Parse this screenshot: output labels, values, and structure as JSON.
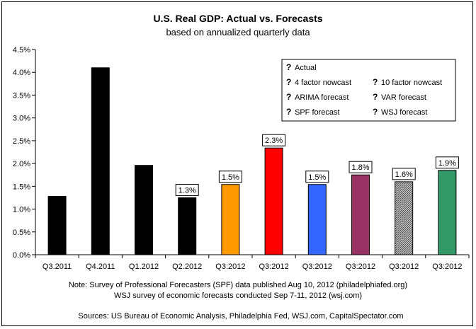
{
  "chart_data": {
    "type": "bar",
    "title": "U.S. Real GDP: Actual vs. Forecasts",
    "subtitle": "based on annualized quarterly data",
    "xlabel": "",
    "ylabel": "",
    "ylim": [
      0,
      4.5
    ],
    "yticks": [
      "0.0%",
      "0.5%",
      "1.0%",
      "1.5%",
      "2.0%",
      "2.5%",
      "3.0%",
      "3.5%",
      "4.0%",
      "4.5%"
    ],
    "grid": false,
    "legend_position": "top-right",
    "categories": [
      "Q3.2011",
      "Q4.2011",
      "Q1.2012",
      "Q2.2012",
      "Q3:2012",
      "Q3:2012",
      "Q3:2012",
      "Q3:2012",
      "Q3:2012",
      "Q3:2012"
    ],
    "bars": [
      {
        "series": "Actual",
        "value": 1.28,
        "label": ""
      },
      {
        "series": "Actual",
        "value": 4.1,
        "label": ""
      },
      {
        "series": "Actual",
        "value": 1.96,
        "label": ""
      },
      {
        "series": "Actual",
        "value": 1.25,
        "label": "1.3%"
      },
      {
        "series": "4 factor nowcast",
        "value": 1.54,
        "label": "1.5%"
      },
      {
        "series": "10 factor nowcast",
        "value": 2.34,
        "label": "2.3%"
      },
      {
        "series": "ARIMA forecast",
        "value": 1.54,
        "label": "1.5%"
      },
      {
        "series": "VAR forecast",
        "value": 1.75,
        "label": "1.8%"
      },
      {
        "series": "SPF forecast",
        "value": 1.6,
        "label": "1.6%"
      },
      {
        "series": "WSJ forecast",
        "value": 1.85,
        "label": "1.9%"
      }
    ],
    "legend": [
      {
        "name": "Actual",
        "color": "#000000"
      },
      {
        "name": "4 factor nowcast",
        "color": "#FF9900"
      },
      {
        "name": "10 factor nowcast",
        "color": "#FF0000"
      },
      {
        "name": "ARIMA forecast",
        "color": "#3366FF"
      },
      {
        "name": "VAR forecast",
        "color": "#993366"
      },
      {
        "name": "SPF forecast",
        "color": "#969696"
      },
      {
        "name": "WSJ forecast",
        "color": "#339966"
      }
    ],
    "legend_marker": "?",
    "notes": [
      "Note:  Survey of Professional Forecasters (SPF) data published Aug 10, 2012 (philadelphiafed.org)",
      "WSJ survey of economic forecasts conducted Sep 7-11, 2012 (wsj.com)"
    ],
    "source": "Sources: US Bureau of Economic Analysis, Philadelphia Fed, WSJ.com, CapitalSpectator.com"
  }
}
